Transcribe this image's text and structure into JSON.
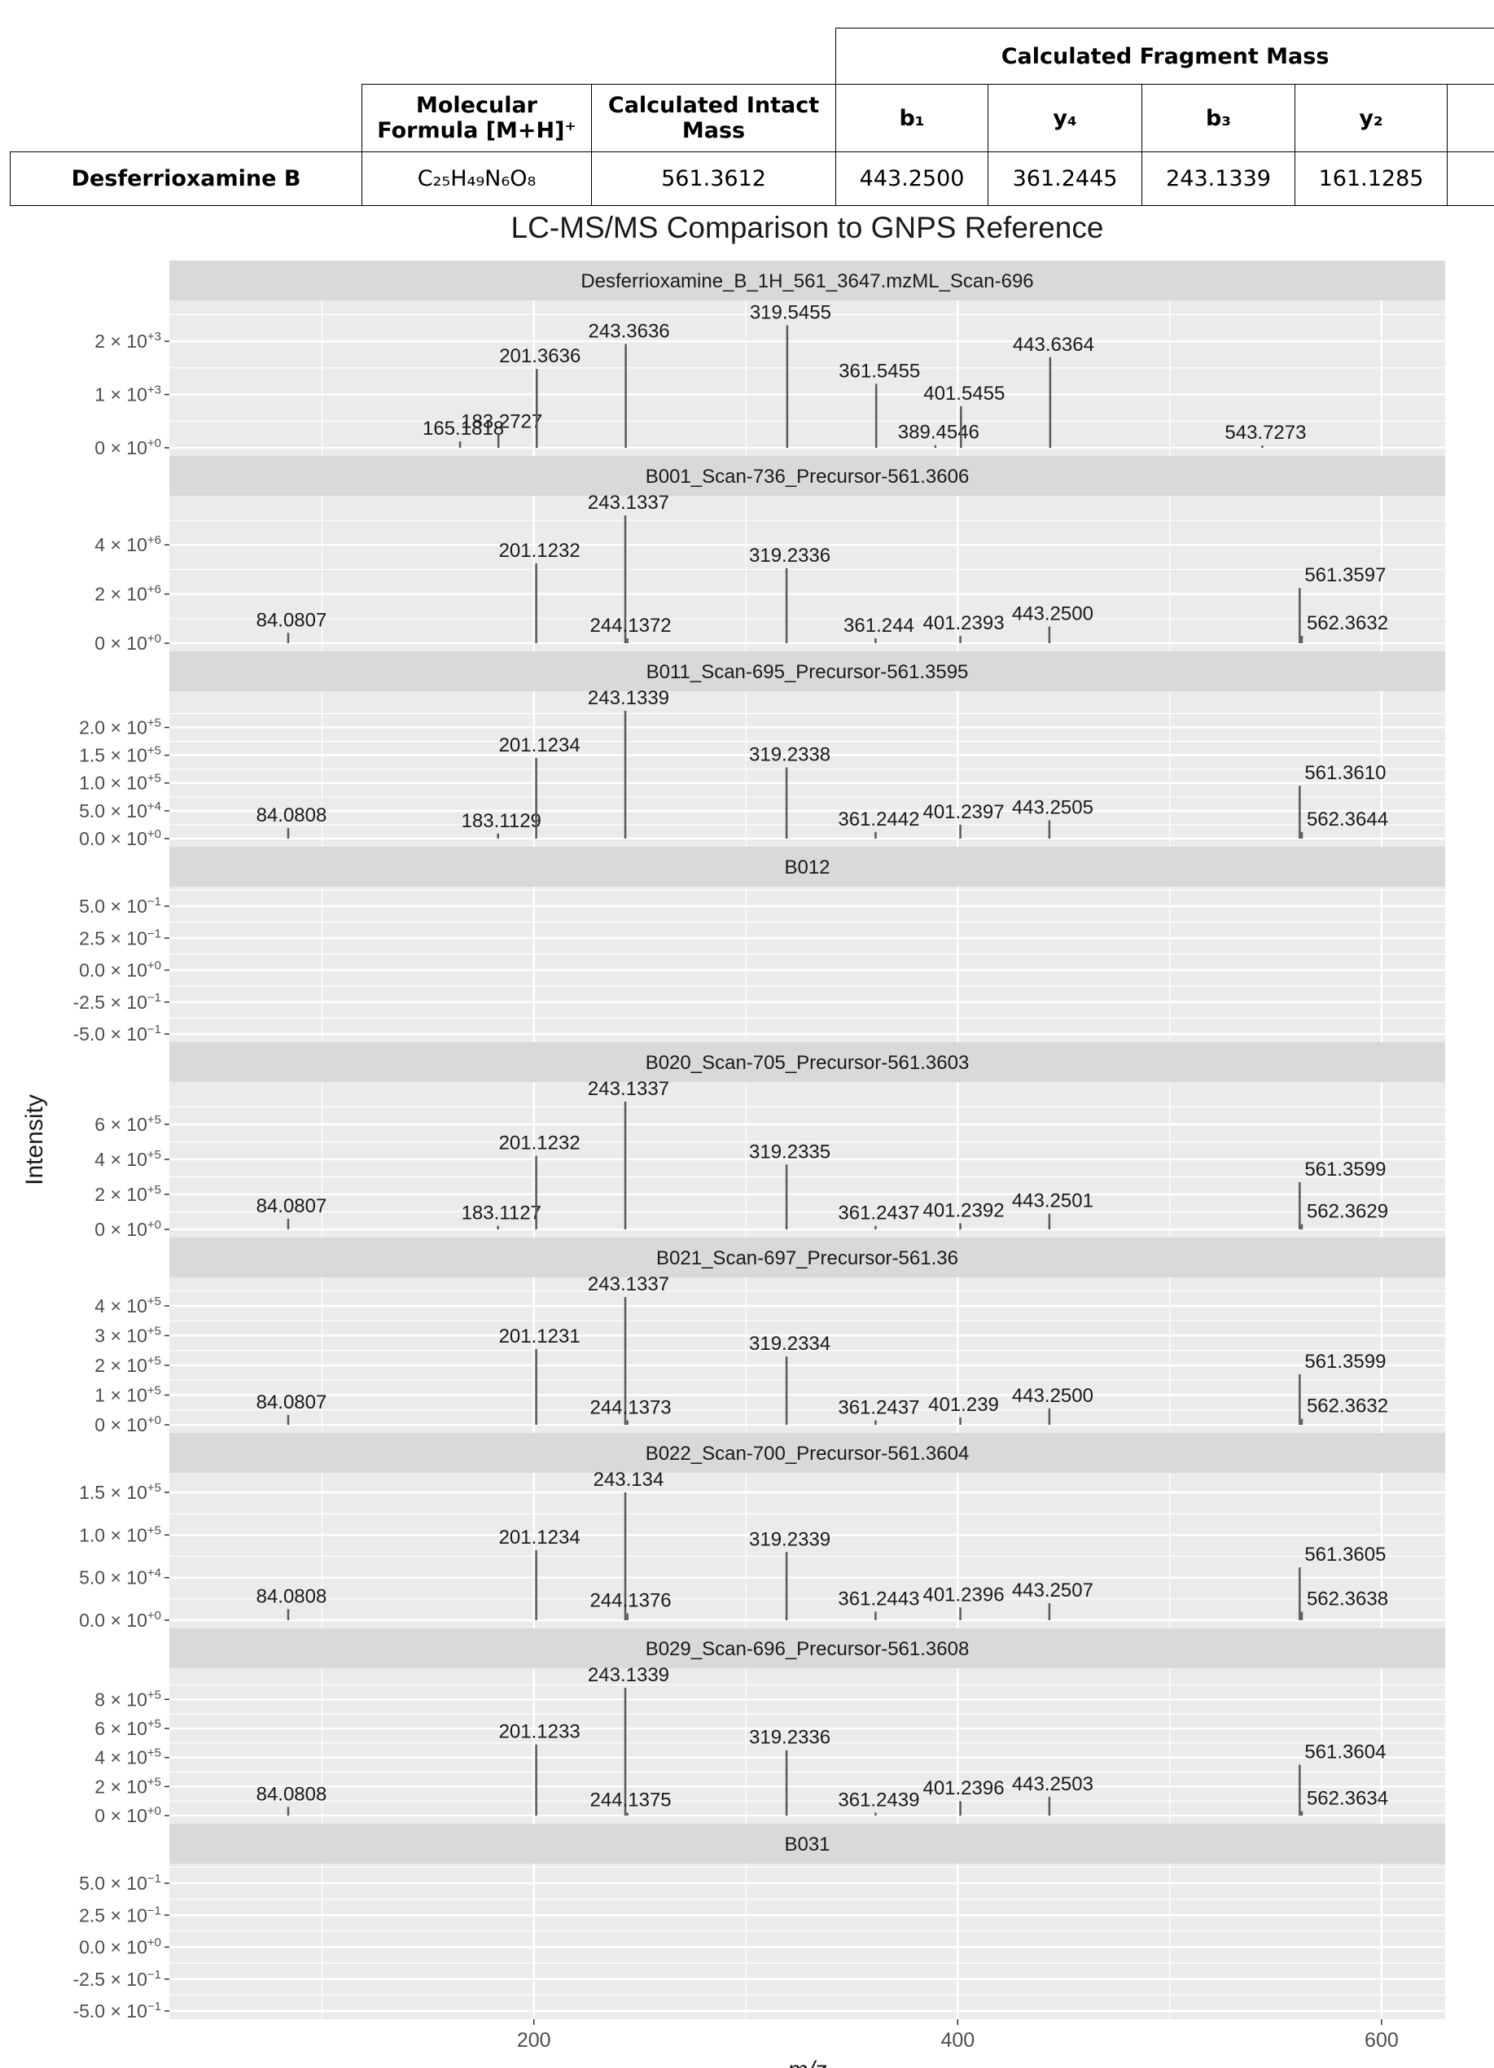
{
  "table": {
    "group_header": "Calculated Fragment Mass",
    "header_formula": "Molecular Formula [M+H]⁺",
    "header_intact": "Calculated Intact Mass",
    "fragment_headers": [
      "b₁",
      "y₄",
      "b₃",
      "y₂",
      ""
    ],
    "row": {
      "compound": "Desferrioxamine B",
      "formula": "C₂₅H₄₉N₆O₈",
      "intact_mass": "561.3612",
      "fragments": [
        "443.2500",
        "361.2445",
        "243.1339",
        "161.1285",
        ""
      ]
    }
  },
  "chart_data": {
    "type": "bar",
    "title": "LC-MS/MS Comparison to GNPS Reference",
    "xlabel": "m/z",
    "ylabel": "Intensity",
    "xlim": [
      28,
      630
    ],
    "x_ticks": [
      200,
      400,
      600
    ],
    "x_tick_labels": [
      "200",
      "400",
      "600"
    ],
    "grid": true,
    "panels": [
      {
        "title": "Desferrioxamine_B_1H_561_3647.mzML_Scan-696",
        "ylim": [
          0,
          2400
        ],
        "y_ticks": [
          0,
          1000,
          2000
        ],
        "y_tick_labels": [
          [
            "0",
            "0"
          ],
          [
            "1",
            "3"
          ],
          [
            "2",
            "3"
          ]
        ],
        "peaks": [
          {
            "mz": 165.1818,
            "intensity": 120,
            "label": "165.1818"
          },
          {
            "mz": 183.2727,
            "intensity": 250,
            "label": "183.2727"
          },
          {
            "mz": 201.3636,
            "intensity": 1480,
            "label": "201.3636"
          },
          {
            "mz": 243.3636,
            "intensity": 1950,
            "label": "243.3636"
          },
          {
            "mz": 319.5455,
            "intensity": 2300,
            "label": "319.5455"
          },
          {
            "mz": 361.5455,
            "intensity": 1200,
            "label": "361.5455"
          },
          {
            "mz": 389.4546,
            "intensity": 50,
            "label": "389.4546"
          },
          {
            "mz": 401.5455,
            "intensity": 780,
            "label": "401.5455"
          },
          {
            "mz": 443.6364,
            "intensity": 1700,
            "label": "443.6364"
          },
          {
            "mz": 543.7273,
            "intensity": 30,
            "label": "543.7273"
          }
        ]
      },
      {
        "title": "B001_Scan-736_Precursor-561.3606",
        "ylim": [
          0,
          5200000
        ],
        "y_ticks": [
          0,
          2000000,
          4000000
        ],
        "y_tick_labels": [
          [
            "0",
            "0"
          ],
          [
            "2",
            "6"
          ],
          [
            "4",
            "6"
          ]
        ],
        "peaks": [
          {
            "mz": 84.0807,
            "intensity": 420000,
            "label": "84.0807"
          },
          {
            "mz": 201.1232,
            "intensity": 3250000,
            "label": "201.1232"
          },
          {
            "mz": 243.1337,
            "intensity": 5200000,
            "label": "243.1337"
          },
          {
            "mz": 244.1372,
            "intensity": 200000,
            "label": "244.1372"
          },
          {
            "mz": 319.2336,
            "intensity": 3050000,
            "label": "319.2336"
          },
          {
            "mz": 361.244,
            "intensity": 200000,
            "label": "361.244"
          },
          {
            "mz": 401.2393,
            "intensity": 300000,
            "label": "401.2393"
          },
          {
            "mz": 443.25,
            "intensity": 680000,
            "label": "443.2500"
          },
          {
            "mz": 561.3597,
            "intensity": 2250000,
            "label": "561.3597"
          },
          {
            "mz": 562.3632,
            "intensity": 300000,
            "label": "562.3632"
          }
        ]
      },
      {
        "title": "B011_Scan-695_Precursor-561.3595",
        "ylim": [
          0,
          230000
        ],
        "y_ticks": [
          0,
          50000,
          100000,
          150000,
          200000
        ],
        "y_tick_labels": [
          [
            "0.0",
            "0"
          ],
          [
            "5.0",
            "4"
          ],
          [
            "1.0",
            "5"
          ],
          [
            "1.5",
            "5"
          ],
          [
            "2.0",
            "5"
          ]
        ],
        "peaks": [
          {
            "mz": 84.0808,
            "intensity": 19000,
            "label": "84.0808"
          },
          {
            "mz": 183.1129,
            "intensity": 9000,
            "label": "183.1129"
          },
          {
            "mz": 201.1234,
            "intensity": 145000,
            "label": "201.1234"
          },
          {
            "mz": 243.1339,
            "intensity": 230000,
            "label": "243.1339"
          },
          {
            "mz": 319.2338,
            "intensity": 128000,
            "label": "319.2338"
          },
          {
            "mz": 361.2442,
            "intensity": 12000,
            "label": "361.2442"
          },
          {
            "mz": 401.2397,
            "intensity": 25000,
            "label": "401.2397"
          },
          {
            "mz": 443.2505,
            "intensity": 33000,
            "label": "443.2505"
          },
          {
            "mz": 561.361,
            "intensity": 95000,
            "label": "561.3610"
          },
          {
            "mz": 562.3644,
            "intensity": 12000,
            "label": "562.3644"
          }
        ]
      },
      {
        "title": "B012",
        "ylim": [
          -0.5,
          0.5
        ],
        "y_ticks": [
          -0.5,
          -0.25,
          0,
          0.25,
          0.5
        ],
        "y_tick_labels": [
          [
            "-5.0",
            "−1"
          ],
          [
            "-2.5",
            "−1"
          ],
          [
            "0.0",
            "0"
          ],
          [
            "2.5",
            "−1"
          ],
          [
            "5.0",
            "−1"
          ]
        ],
        "peaks": []
      },
      {
        "title": "B020_Scan-705_Precursor-561.3603",
        "ylim": [
          0,
          730000
        ],
        "y_ticks": [
          0,
          200000,
          400000,
          600000
        ],
        "y_tick_labels": [
          [
            "0",
            "0"
          ],
          [
            "2",
            "5"
          ],
          [
            "4",
            "5"
          ],
          [
            "6",
            "5"
          ]
        ],
        "peaks": [
          {
            "mz": 84.0807,
            "intensity": 60000,
            "label": "84.0807"
          },
          {
            "mz": 183.1127,
            "intensity": 20000,
            "label": "183.1127"
          },
          {
            "mz": 201.1232,
            "intensity": 420000,
            "label": "201.1232"
          },
          {
            "mz": 243.1337,
            "intensity": 730000,
            "label": "243.1337"
          },
          {
            "mz": 319.2335,
            "intensity": 370000,
            "label": "319.2335"
          },
          {
            "mz": 361.2437,
            "intensity": 20000,
            "label": "361.2437"
          },
          {
            "mz": 401.2392,
            "intensity": 35000,
            "label": "401.2392"
          },
          {
            "mz": 443.2501,
            "intensity": 90000,
            "label": "443.2501"
          },
          {
            "mz": 561.3599,
            "intensity": 270000,
            "label": "561.3599"
          },
          {
            "mz": 562.3629,
            "intensity": 30000,
            "label": "562.3629"
          }
        ]
      },
      {
        "title": "B021_Scan-697_Precursor-561.36",
        "ylim": [
          0,
          430000
        ],
        "y_ticks": [
          0,
          100000,
          200000,
          300000,
          400000
        ],
        "y_tick_labels": [
          [
            "0",
            "0"
          ],
          [
            "1",
            "5"
          ],
          [
            "2",
            "5"
          ],
          [
            "3",
            "5"
          ],
          [
            "4",
            "5"
          ]
        ],
        "peaks": [
          {
            "mz": 84.0807,
            "intensity": 33000,
            "label": "84.0807"
          },
          {
            "mz": 201.1231,
            "intensity": 255000,
            "label": "201.1231"
          },
          {
            "mz": 243.1337,
            "intensity": 430000,
            "label": "243.1337"
          },
          {
            "mz": 244.1373,
            "intensity": 15000,
            "label": "244.1373"
          },
          {
            "mz": 319.2334,
            "intensity": 230000,
            "label": "319.2334"
          },
          {
            "mz": 361.2437,
            "intensity": 15000,
            "label": "361.2437"
          },
          {
            "mz": 401.239,
            "intensity": 25000,
            "label": "401.239"
          },
          {
            "mz": 443.25,
            "intensity": 55000,
            "label": "443.2500"
          },
          {
            "mz": 561.3599,
            "intensity": 170000,
            "label": "561.3599"
          },
          {
            "mz": 562.3632,
            "intensity": 20000,
            "label": "562.3632"
          }
        ]
      },
      {
        "title": "B022_Scan-700_Precursor-561.3604",
        "ylim": [
          0,
          150000
        ],
        "y_ticks": [
          0,
          50000,
          100000,
          150000
        ],
        "y_tick_labels": [
          [
            "0.0",
            "0"
          ],
          [
            "5.0",
            "4"
          ],
          [
            "1.0",
            "5"
          ],
          [
            "1.5",
            "5"
          ]
        ],
        "peaks": [
          {
            "mz": 84.0808,
            "intensity": 13000,
            "label": "84.0808"
          },
          {
            "mz": 201.1234,
            "intensity": 82000,
            "label": "201.1234"
          },
          {
            "mz": 243.134,
            "intensity": 150000,
            "label": "243.134"
          },
          {
            "mz": 244.1376,
            "intensity": 8000,
            "label": "244.1376"
          },
          {
            "mz": 319.2339,
            "intensity": 80000,
            "label": "319.2339"
          },
          {
            "mz": 361.2443,
            "intensity": 10000,
            "label": "361.2443"
          },
          {
            "mz": 401.2396,
            "intensity": 15000,
            "label": "401.2396"
          },
          {
            "mz": 443.2507,
            "intensity": 20000,
            "label": "443.2507"
          },
          {
            "mz": 561.3605,
            "intensity": 62000,
            "label": "561.3605"
          },
          {
            "mz": 562.3638,
            "intensity": 10000,
            "label": "562.3638"
          }
        ]
      },
      {
        "title": "B029_Scan-696_Precursor-561.3608",
        "ylim": [
          0,
          880000
        ],
        "y_ticks": [
          0,
          200000,
          400000,
          600000,
          800000
        ],
        "y_tick_labels": [
          [
            "0",
            "0"
          ],
          [
            "2",
            "5"
          ],
          [
            "4",
            "5"
          ],
          [
            "6",
            "5"
          ],
          [
            "8",
            "5"
          ]
        ],
        "peaks": [
          {
            "mz": 84.0808,
            "intensity": 60000,
            "label": "84.0808"
          },
          {
            "mz": 201.1233,
            "intensity": 490000,
            "label": "201.1233"
          },
          {
            "mz": 243.1339,
            "intensity": 880000,
            "label": "243.1339"
          },
          {
            "mz": 244.1375,
            "intensity": 20000,
            "label": "244.1375"
          },
          {
            "mz": 319.2336,
            "intensity": 450000,
            "label": "319.2336"
          },
          {
            "mz": 361.2439,
            "intensity": 20000,
            "label": "361.2439"
          },
          {
            "mz": 401.2396,
            "intensity": 100000,
            "label": "401.2396"
          },
          {
            "mz": 443.2503,
            "intensity": 130000,
            "label": "443.2503"
          },
          {
            "mz": 561.3604,
            "intensity": 350000,
            "label": "561.3604"
          },
          {
            "mz": 562.3634,
            "intensity": 30000,
            "label": "562.3634"
          }
        ]
      },
      {
        "title": "B031",
        "ylim": [
          -0.5,
          0.5
        ],
        "y_ticks": [
          -0.5,
          -0.25,
          0,
          0.25,
          0.5
        ],
        "y_tick_labels": [
          [
            "-5.0",
            "−1"
          ],
          [
            "-2.5",
            "−1"
          ],
          [
            "0.0",
            "0"
          ],
          [
            "2.5",
            "−1"
          ],
          [
            "5.0",
            "−1"
          ]
        ],
        "peaks": []
      }
    ],
    "colors": {
      "panel_background": "#ebebeb",
      "strip_background": "#d9d9d9",
      "grid": "#ffffff",
      "peak": "#595959",
      "text": "#1a1a1a",
      "tick_text": "#4d4d4d"
    }
  }
}
